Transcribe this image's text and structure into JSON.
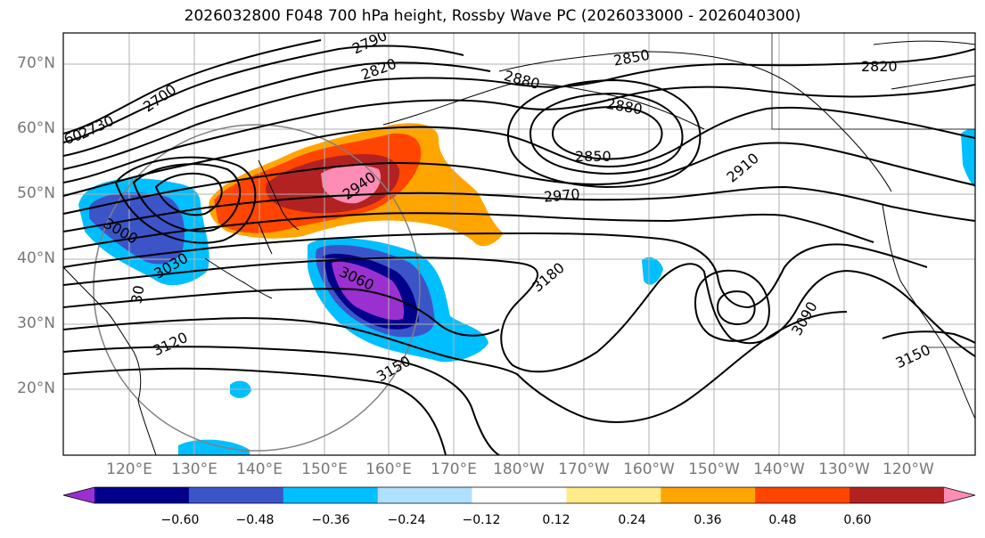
{
  "title": "2026032800 F048 700 hPa height, Rossby Wave PC (2026033000 - 2026040300)",
  "lat_labels": [
    "70°N",
    "60°N",
    "50°N",
    "40°N",
    "30°N",
    "20°N"
  ],
  "lon_labels": [
    "120°E",
    "130°E",
    "140°E",
    "150°E",
    "160°E",
    "170°E",
    "180°W",
    "170°W",
    "160°W",
    "150°W",
    "140°W",
    "130°W",
    "120°W"
  ],
  "contour_labels": [
    "2790",
    "2820",
    "2700",
    "2730",
    "60",
    "2850",
    "2820",
    "2880",
    "2880",
    "2850",
    "2910",
    "2940",
    "2970",
    "3000",
    "3030",
    "3060",
    "3180",
    "3090",
    "3150",
    "3120",
    "3150",
    "30"
  ],
  "colorbar": {
    "colors": [
      "#9b30d0",
      "#00008b",
      "#3b55c9",
      "#00bfff",
      "#b0e0ff",
      "#ffffff",
      "#ffeb8a",
      "#ffa500",
      "#ff4500",
      "#b22222",
      "#ff8cb4"
    ],
    "ticks": [
      "−0.60",
      "−0.48",
      "−0.36",
      "−0.24",
      "−0.12",
      "0.12",
      "0.24",
      "0.36",
      "0.48",
      "0.60"
    ]
  },
  "colors": {
    "grid": "#b0b0b0",
    "contour": "#000000",
    "circle": "#808080"
  }
}
